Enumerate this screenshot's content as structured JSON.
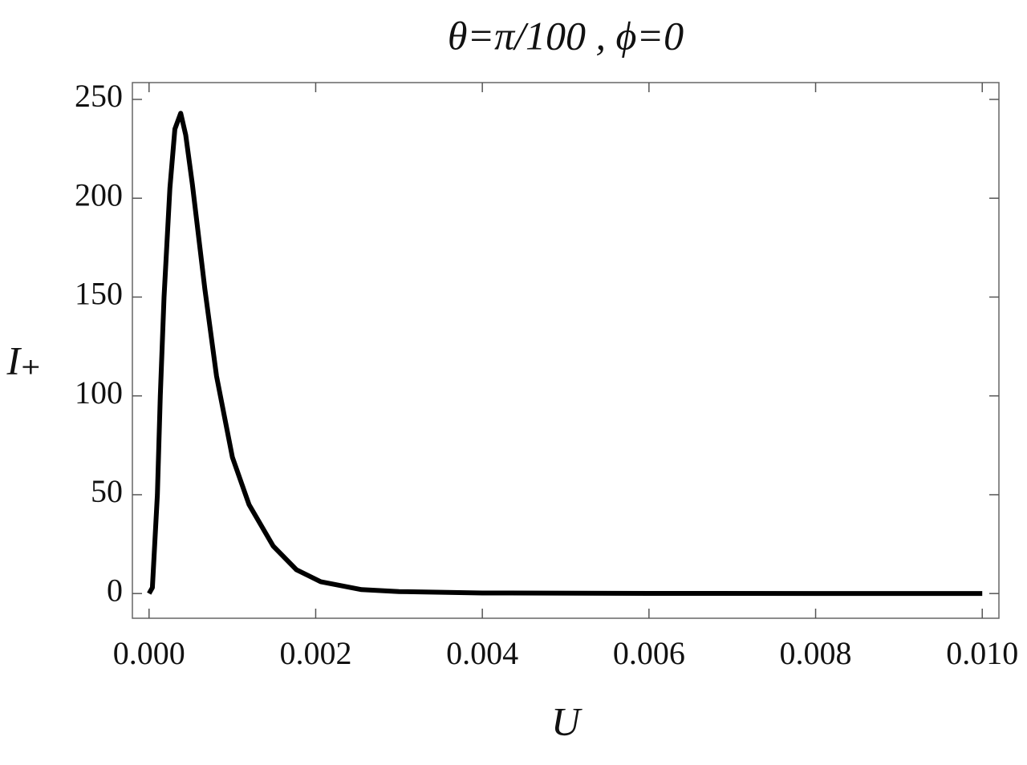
{
  "chart_data": {
    "type": "line",
    "title": "θ=π/100 , ϕ=0",
    "x_label": "U",
    "y_label": "I₊",
    "x": [
      0,
      4e-05,
      0.0001,
      0.000135,
      0.00018,
      0.00025,
      0.00031,
      0.00038,
      0.00044,
      0.00052,
      0.00067,
      0.00081,
      0.001,
      0.0012,
      0.00149,
      0.00177,
      0.00206,
      0.00255,
      0.003,
      0.004,
      0.006,
      0.008,
      0.01
    ],
    "series": [
      {
        "color": "#000000",
        "values": [
          0,
          3,
          50,
          100,
          150,
          205,
          235,
          243,
          232,
          207,
          154,
          110,
          69,
          45,
          24,
          12,
          6,
          2,
          1,
          0.3,
          0.1,
          0.05,
          0.03
        ]
      }
    ],
    "xlim": [
      -0.0002,
      0.0102
    ],
    "ylim": [
      -12.5,
      258.5
    ],
    "xticks": [
      {
        "value": 0,
        "label": "0.000"
      },
      {
        "value": 0.002,
        "label": "0.002"
      },
      {
        "value": 0.004,
        "label": "0.004"
      },
      {
        "value": 0.006,
        "label": "0.006"
      },
      {
        "value": 0.008,
        "label": "0.008"
      },
      {
        "value": 0.01,
        "label": "0.010"
      }
    ],
    "yticks": [
      0,
      50,
      100,
      150,
      200,
      250
    ]
  }
}
